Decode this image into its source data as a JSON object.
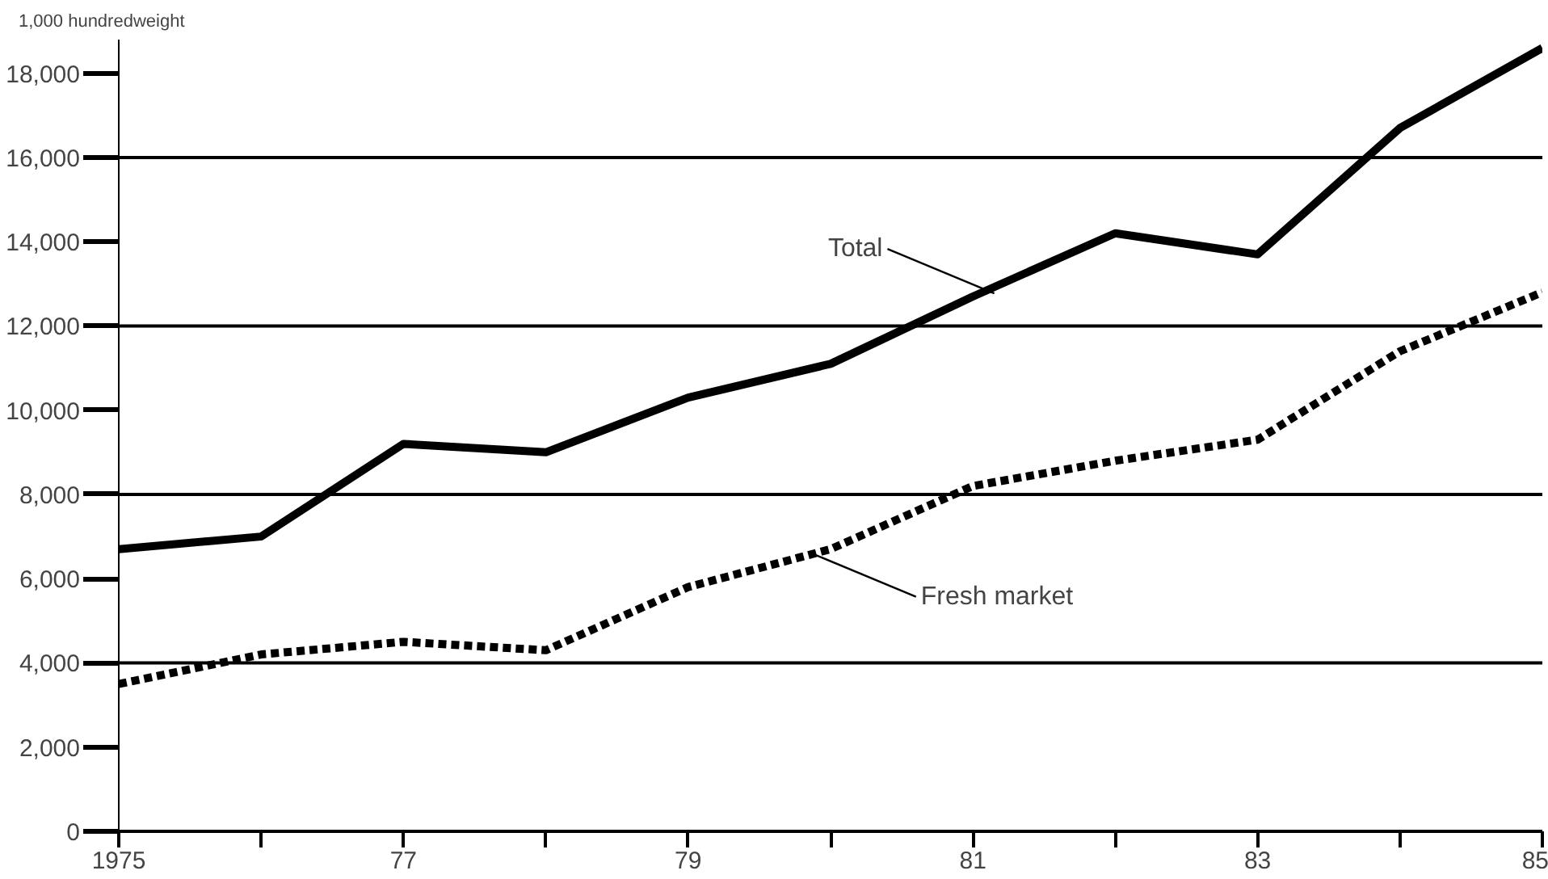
{
  "chart_data": {
    "type": "line",
    "ylabel": "1,000 hundredweight",
    "x": [
      1975,
      1976,
      1977,
      1978,
      1979,
      1980,
      1981,
      1982,
      1983,
      1984,
      1985
    ],
    "series": [
      {
        "name": "Total",
        "color": "#000000",
        "line_style": "solid",
        "values": [
          6700,
          7000,
          9200,
          9000,
          10300,
          11100,
          12700,
          14200,
          13700,
          16700,
          18600
        ]
      },
      {
        "name": "Fresh market",
        "color": "#000000",
        "line_style": "dotted",
        "values": [
          3500,
          4200,
          4500,
          4300,
          5800,
          6700,
          8200,
          8800,
          9300,
          11400,
          12800
        ]
      }
    ],
    "xlim": [
      1975,
      1985
    ],
    "xticks": [
      {
        "value": 1975,
        "label": "1975"
      },
      {
        "value": 1976,
        "label": null
      },
      {
        "value": 1977,
        "label": "77"
      },
      {
        "value": 1978,
        "label": null
      },
      {
        "value": 1979,
        "label": "79"
      },
      {
        "value": 1980,
        "label": null
      },
      {
        "value": 1981,
        "label": "81"
      },
      {
        "value": 1982,
        "label": null
      },
      {
        "value": 1983,
        "label": "83"
      },
      {
        "value": 1984,
        "label": null
      },
      {
        "value": 1985,
        "label": "85"
      }
    ],
    "ylim": [
      0,
      18800
    ],
    "yticks": [
      0,
      {
        "value": 2000,
        "label": "2,000"
      },
      {
        "value": 4000,
        "label": "4,000"
      },
      {
        "value": 6000,
        "label": "6,000"
      },
      {
        "value": 8000,
        "label": "8,000"
      },
      {
        "value": 10000,
        "label": "10,000"
      },
      {
        "value": 12000,
        "label": "12,000"
      },
      {
        "value": 14000,
        "label": "14,000"
      },
      {
        "value": 16000,
        "label": "16,000"
      },
      {
        "value": 18000,
        "label": "18,000"
      }
    ],
    "ref_lines": [
      {
        "axis": "y",
        "value": 4000,
        "color": "#000000"
      },
      {
        "axis": "y",
        "value": 8000,
        "color": "#000000"
      },
      {
        "axis": "y",
        "value": 12000,
        "color": "#000000"
      },
      {
        "axis": "y",
        "value": 16000,
        "color": "#000000"
      }
    ],
    "grid": false
  }
}
